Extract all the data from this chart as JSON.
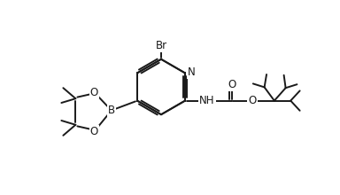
{
  "background": "#ffffff",
  "line_color": "#1a1a1a",
  "line_width": 1.4,
  "font_size": 8.5,
  "fig_width": 3.84,
  "fig_height": 2.2,
  "dpi": 100,
  "xlim": [
    0,
    9.6
  ],
  "ylim": [
    0,
    5.5
  ]
}
